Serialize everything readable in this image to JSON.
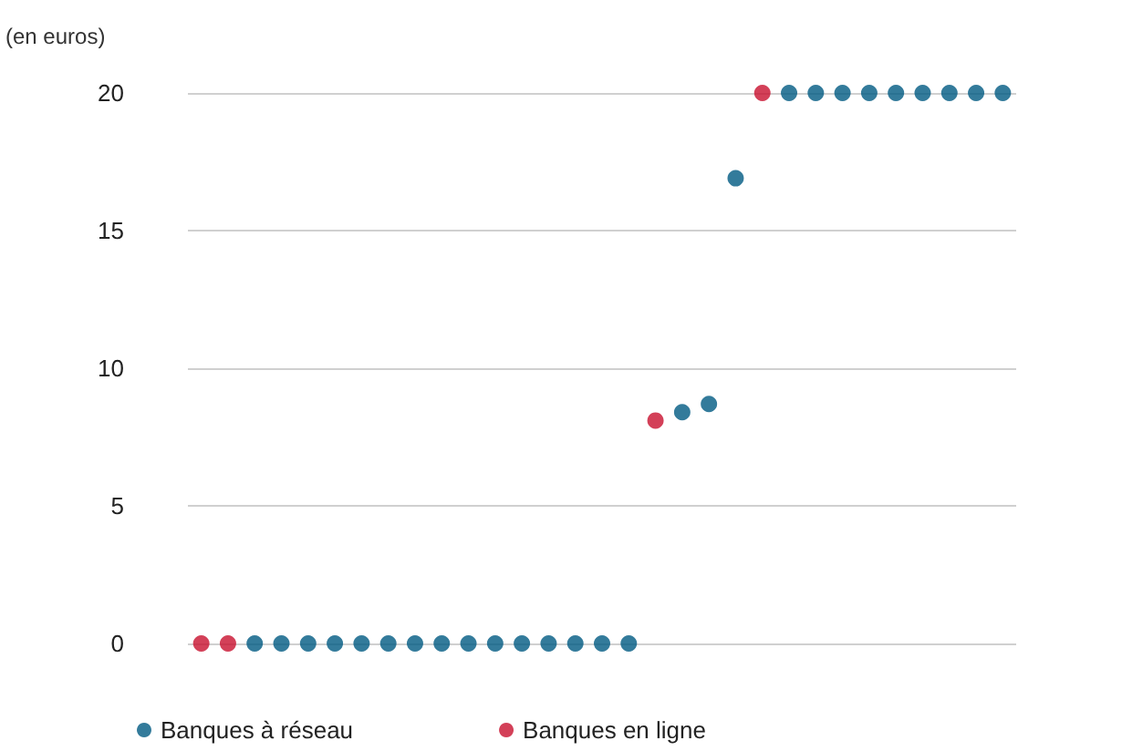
{
  "chart_data": {
    "type": "scatter",
    "ylabel": "(en euros)",
    "categories": [
      null,
      null,
      null,
      null,
      null,
      null,
      null,
      null,
      null,
      null,
      null,
      null,
      null,
      null,
      null,
      null,
      null,
      null,
      null,
      null,
      null,
      null,
      null,
      null,
      null,
      null,
      null,
      null,
      null,
      null,
      null
    ],
    "series": [
      {
        "name": "Banques à réseau",
        "color": "#005a82",
        "values": [
          null,
          null,
          0,
          0,
          0,
          0,
          0,
          0,
          0,
          0,
          0,
          0,
          0,
          0,
          0,
          0,
          0,
          null,
          8.4,
          8.7,
          16.9,
          null,
          20,
          20,
          20,
          20,
          20,
          20,
          20,
          20,
          20
        ]
      },
      {
        "name": "Banques en ligne",
        "color": "#c8102e",
        "values": [
          0,
          0,
          null,
          null,
          null,
          null,
          null,
          null,
          null,
          null,
          null,
          null,
          null,
          null,
          null,
          null,
          null,
          8.1,
          null,
          null,
          null,
          20,
          null,
          null,
          null,
          null,
          null,
          null,
          null,
          null,
          null
        ]
      }
    ],
    "ylim": [
      0,
      20
    ],
    "yticks": [
      0,
      5,
      10,
      15,
      20
    ],
    "grid": "y",
    "legend": "bottom left",
    "marker": "circle",
    "tick_labels": "y"
  }
}
